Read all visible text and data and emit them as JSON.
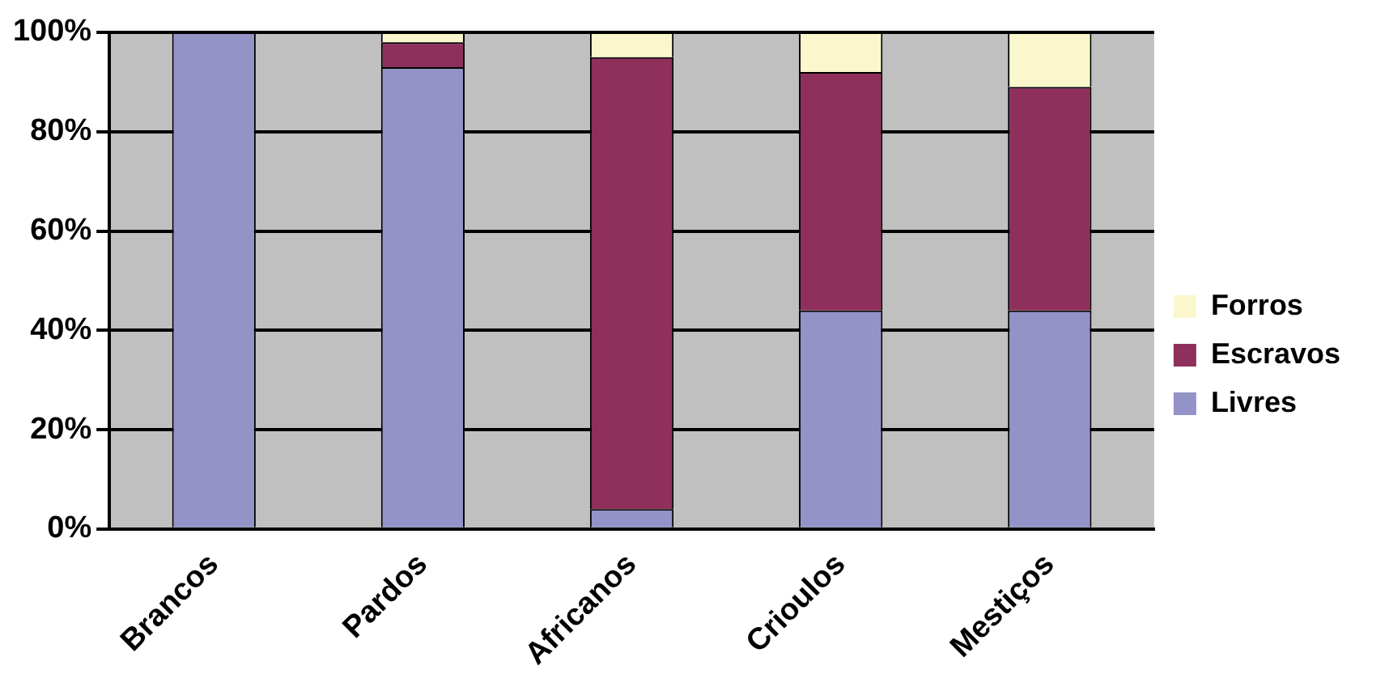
{
  "chart_data": {
    "type": "bar",
    "stacked": true,
    "categories": [
      "Brancos",
      "Pardos",
      "Africanos",
      "Crioulos",
      "Mestiços"
    ],
    "series": [
      {
        "name": "Livres",
        "color": "#9393c8",
        "values": [
          100,
          93,
          4,
          44,
          44
        ]
      },
      {
        "name": "Escravos",
        "color": "#8f2f5c",
        "values": [
          0,
          5,
          91,
          48,
          45
        ]
      },
      {
        "name": "Forros",
        "color": "#fbf7cc",
        "values": [
          0,
          2,
          5,
          8,
          11
        ]
      }
    ],
    "ylim": [
      0,
      100
    ],
    "yticks": [
      {
        "value": 0,
        "label": "0%"
      },
      {
        "value": 20,
        "label": "20%"
      },
      {
        "value": 40,
        "label": "40%"
      },
      {
        "value": 60,
        "label": "60%"
      },
      {
        "value": 80,
        "label": "80%"
      },
      {
        "value": 100,
        "label": "100%"
      }
    ],
    "grid": "y",
    "legend": "right"
  }
}
